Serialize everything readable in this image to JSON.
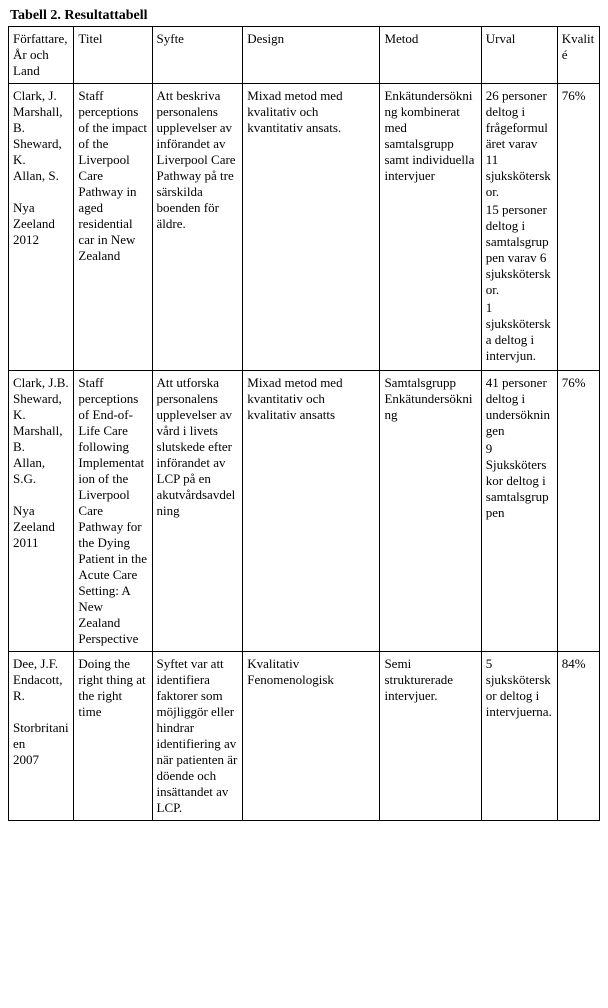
{
  "caption": "Tabell 2. Resultattabell",
  "headers": [
    "Författare, År och Land",
    "Titel",
    "Syfte",
    "Design",
    "Metod",
    "Urval",
    "Kvalité"
  ],
  "rows": [
    {
      "author_lines": [
        "Clark, J.",
        "Marshall, B.",
        "Sheward, K.",
        "Allan, S.",
        "",
        "Nya Zeeland",
        "2012"
      ],
      "title": "Staff perceptions of the impact of the Liverpool Care Pathway in aged residential car in New Zealand",
      "purpose": "Att beskriva personalens upplevelser av införandet av Liverpool Care Pathway på tre särskilda boenden för äldre.",
      "design": "Mixad metod med kvalitativ och kvantitativ ansats.",
      "method": "Enkätundersökning kombinerat med samtalsgrupp samt individuella intervjuer",
      "sample_lines": [
        "26 personer deltog i frågeformuläret varav 11 sjuksköterskor.",
        "15 personer deltog i samtalsgruppen varav 6 sjuksköterskor.",
        "1 sjuksköterska deltog i intervjun."
      ],
      "quality": "76%"
    },
    {
      "author_lines": [
        "Clark, J.B.",
        "Sheward, K.",
        "Marshall, B.",
        "Allan, S.G.",
        "",
        "Nya Zeeland",
        "2011"
      ],
      "title": "Staff perceptions of End-of-Life Care following Implementation of the Liverpool Care Pathway for the Dying Patient in the Acute Care Setting: A New Zealand Perspective",
      "purpose": "Att utforska personalens upplevelser av vård i livets slutskede efter införandet av LCP på en akutvårdsavdelning",
      "design": "Mixad metod med kvantitativ och kvalitativ ansatts",
      "method": "Samtalsgrupp Enkätundersökning",
      "sample_lines": [
        "41 personer deltog i undersökningen",
        "9 Sjuksköterskor deltog i samtalsgruppen"
      ],
      "quality": "76%"
    },
    {
      "author_lines": [
        "Dee, J.F.",
        "Endacott, R.",
        "",
        "Storbritanien",
        "2007"
      ],
      "title": "Doing the right thing at the right time",
      "purpose": "Syftet var att identifiera faktorer som möjliggör eller hindrar identifiering av när patienten är döende och insättandet av LCP.",
      "design": "Kvalitativ Fenomenologisk",
      "method": "Semi strukturerade intervjuer.",
      "sample_lines": [
        "5 sjuksköterskor deltog i intervjuerna."
      ],
      "quality": "84%"
    }
  ]
}
